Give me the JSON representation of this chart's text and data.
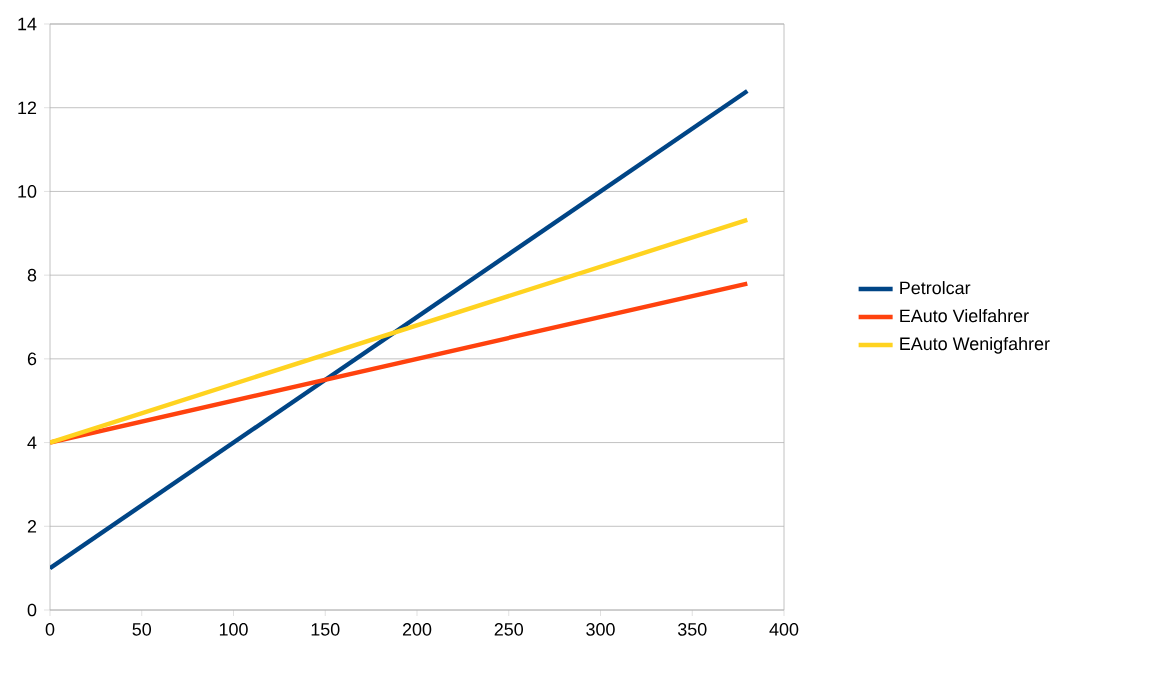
{
  "chart_data": {
    "type": "line",
    "x": [
      0,
      380
    ],
    "series": [
      {
        "name": "Petrolcar",
        "color": "#004586",
        "values": [
          1,
          12.4
        ]
      },
      {
        "name": "EAuto  Vielfahrer",
        "color": "#ff420e",
        "values": [
          4,
          7.8
        ]
      },
      {
        "name": "EAuto  Wenigfahrer",
        "color": "#ffd320",
        "values": [
          4,
          9.32
        ]
      }
    ],
    "xlim": [
      0,
      400
    ],
    "xticks": [
      0,
      50,
      100,
      150,
      200,
      250,
      300,
      350,
      400
    ],
    "ylim": [
      0,
      14
    ],
    "yticks": [
      0,
      2,
      4,
      6,
      8,
      10,
      12,
      14
    ],
    "grid": "y",
    "legend": "right",
    "marker": "none",
    "line_style": "solid"
  }
}
